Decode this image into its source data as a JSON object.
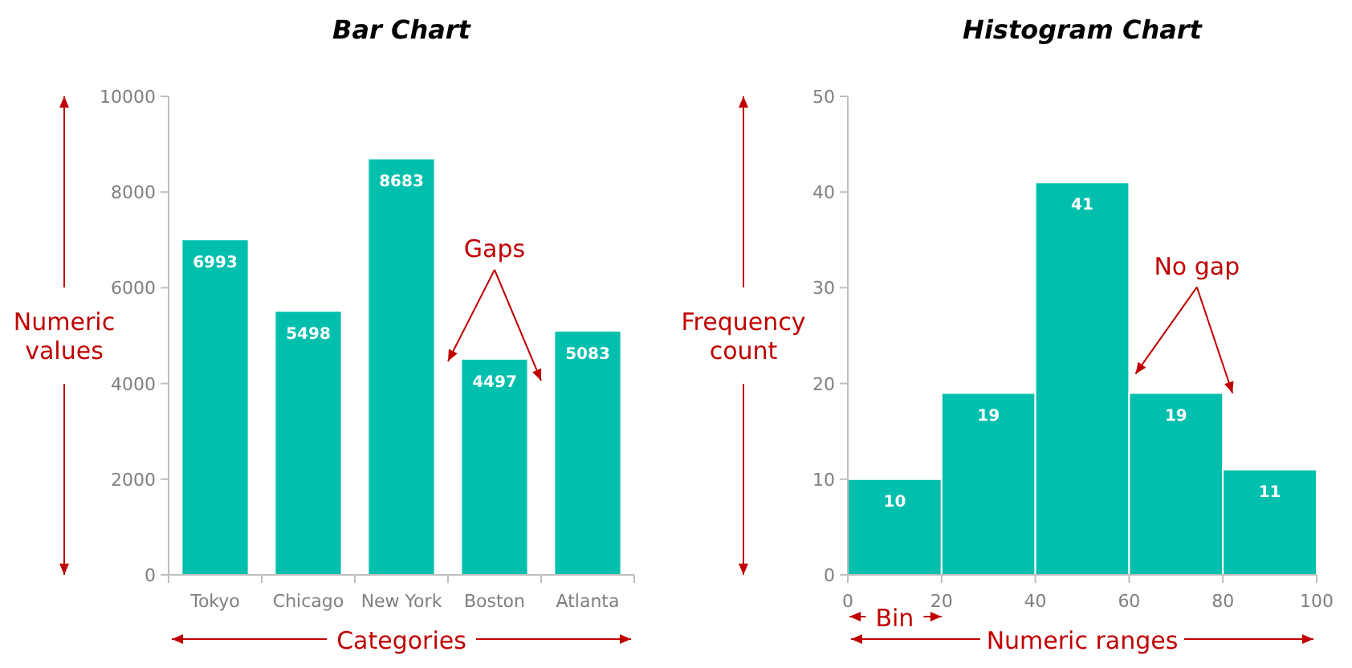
{
  "chart_data": [
    {
      "type": "bar",
      "title": "Bar Chart",
      "categories": [
        "Tokyo",
        "Chicago",
        "New York",
        "Boston",
        "Atlanta"
      ],
      "values": [
        6993,
        5498,
        8683,
        4497,
        5083
      ],
      "color": "#00bfad",
      "ylim": [
        0,
        10000
      ],
      "yticks": [
        0,
        2000,
        4000,
        6000,
        8000,
        10000
      ],
      "data_labels": true,
      "annotations": [
        "Numeric values",
        "Gaps",
        "Categories"
      ]
    },
    {
      "type": "histogram",
      "title": "Histogram Chart",
      "bins": [
        0,
        20,
        40,
        60,
        80,
        100
      ],
      "values": [
        10,
        19,
        41,
        19,
        11
      ],
      "color": "#00bfad",
      "xlim": [
        0,
        100
      ],
      "xticks": [
        0,
        20,
        40,
        60,
        80,
        100
      ],
      "ylim": [
        0,
        50
      ],
      "yticks": [
        0,
        10,
        20,
        30,
        40,
        50
      ],
      "data_labels": true,
      "annotations": [
        "Frequency count",
        {
          "text": "No gap",
          "x": 60,
          "y": 21
        },
        "Bin",
        "Numeric ranges"
      ]
    }
  ]
}
